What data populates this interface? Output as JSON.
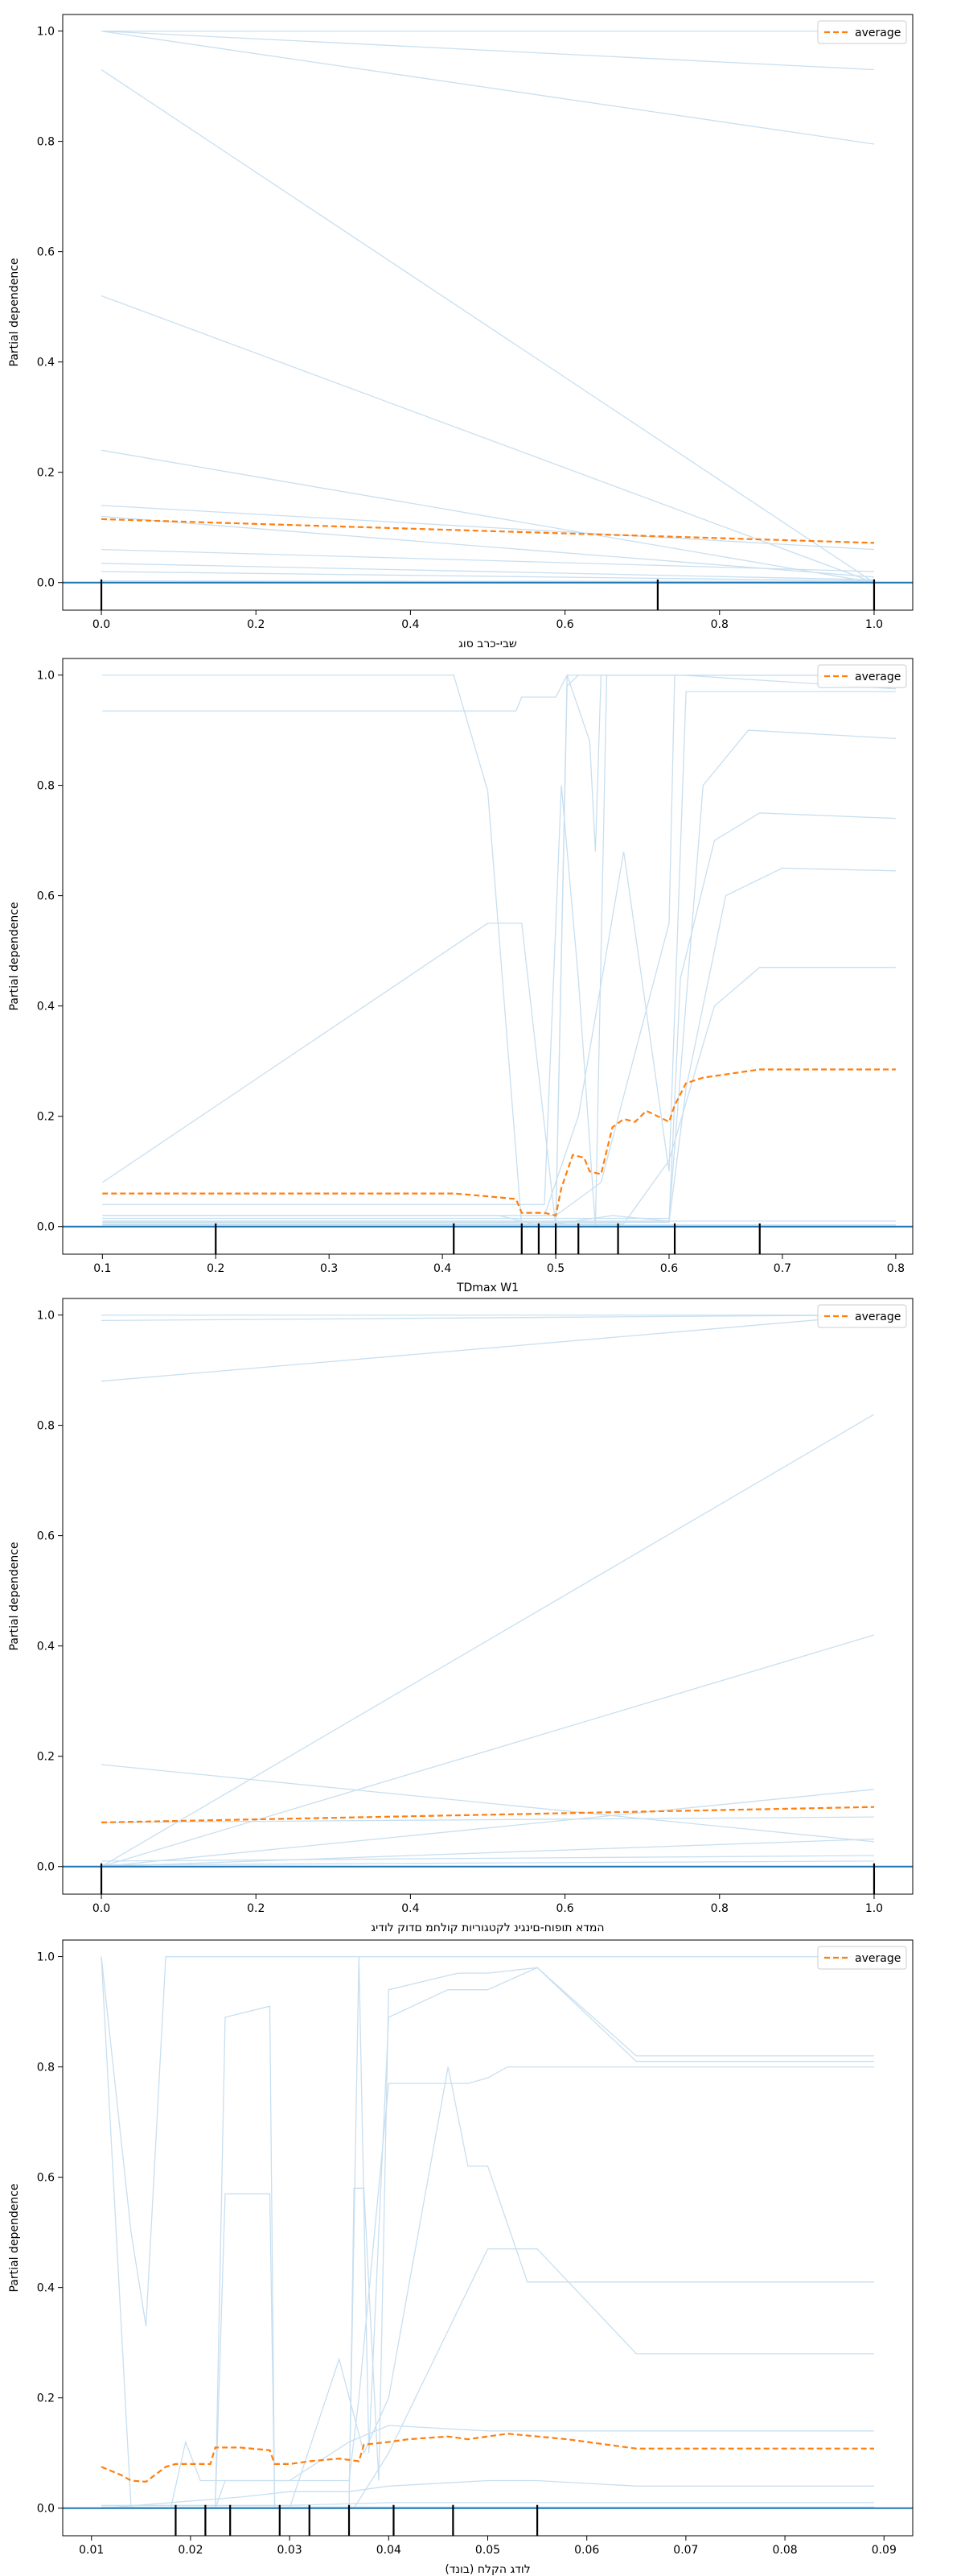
{
  "chart_data": [
    {
      "type": "line",
      "xlabel": "שבי-כרב סוג",
      "ylabel": "Partial dependence",
      "xlim": [
        -0.05,
        1.05
      ],
      "ylim": [
        -0.05,
        1.03
      ],
      "xticks": [
        0.0,
        0.2,
        0.4,
        0.6,
        0.8,
        1.0
      ],
      "xtick_labels": [
        "0.0",
        "0.2",
        "0.4",
        "0.6",
        "0.8",
        "1.0"
      ],
      "yticks": [
        0.0,
        0.2,
        0.4,
        0.6,
        0.8,
        1.0
      ],
      "ytick_labels": [
        "0.0",
        "0.2",
        "0.4",
        "0.6",
        "0.8",
        "1.0"
      ],
      "legend": {
        "label": "average",
        "position": "top-right"
      },
      "average": {
        "x": [
          0.0,
          1.0
        ],
        "y": [
          0.115,
          0.072
        ]
      },
      "ice": [
        {
          "x": [
            0.0,
            1.0
          ],
          "y": [
            1.0,
            1.0
          ]
        },
        {
          "x": [
            0.0,
            1.0
          ],
          "y": [
            1.0,
            0.93
          ]
        },
        {
          "x": [
            0.0,
            1.0
          ],
          "y": [
            1.0,
            0.795
          ]
        },
        {
          "x": [
            0.0,
            1.0
          ],
          "y": [
            0.93,
            0.0
          ]
        },
        {
          "x": [
            0.0,
            1.0
          ],
          "y": [
            0.52,
            0.0
          ]
        },
        {
          "x": [
            0.0,
            1.0
          ],
          "y": [
            0.24,
            0.0
          ]
        },
        {
          "x": [
            0.0,
            1.0
          ],
          "y": [
            0.14,
            0.06
          ]
        },
        {
          "x": [
            0.0,
            1.0
          ],
          "y": [
            0.12,
            0.01
          ]
        },
        {
          "x": [
            0.0,
            1.0
          ],
          "y": [
            0.06,
            0.02
          ]
        },
        {
          "x": [
            0.0,
            1.0
          ],
          "y": [
            0.035,
            0.005
          ]
        },
        {
          "x": [
            0.0,
            1.0
          ],
          "y": [
            0.02,
            0.003
          ]
        },
        {
          "x": [
            0.0,
            1.0
          ],
          "y": [
            0.003,
            0.002
          ]
        }
      ],
      "rug": [
        0.0,
        0.72,
        1.0
      ]
    },
    {
      "type": "line",
      "xlabel": "TDmax W1",
      "ylabel": "Partial dependence",
      "xlim": [
        0.065,
        0.815
      ],
      "ylim": [
        -0.05,
        1.03
      ],
      "xticks": [
        0.1,
        0.2,
        0.3,
        0.4,
        0.5,
        0.6,
        0.7,
        0.8
      ],
      "xtick_labels": [
        "0.1",
        "0.2",
        "0.3",
        "0.4",
        "0.5",
        "0.6",
        "0.7",
        "0.8"
      ],
      "yticks": [
        0.0,
        0.2,
        0.4,
        0.6,
        0.8,
        1.0
      ],
      "ytick_labels": [
        "0.0",
        "0.2",
        "0.4",
        "0.6",
        "0.8",
        "1.0"
      ],
      "legend": {
        "label": "average",
        "position": "top-right"
      },
      "average": {
        "x": [
          0.1,
          0.41,
          0.44,
          0.465,
          0.47,
          0.49,
          0.5,
          0.505,
          0.515,
          0.525,
          0.53,
          0.54,
          0.55,
          0.56,
          0.57,
          0.58,
          0.6,
          0.605,
          0.615,
          0.63,
          0.68,
          0.8
        ],
        "y": [
          0.06,
          0.06,
          0.055,
          0.05,
          0.025,
          0.025,
          0.02,
          0.07,
          0.13,
          0.125,
          0.1,
          0.095,
          0.18,
          0.195,
          0.19,
          0.21,
          0.19,
          0.22,
          0.26,
          0.27,
          0.285,
          0.285
        ]
      },
      "ice": [
        {
          "x": [
            0.1,
            0.41,
            0.44,
            0.47,
            0.5,
            0.51,
            0.53,
            0.535,
            0.54,
            0.8
          ],
          "y": [
            1.0,
            1.0,
            0.79,
            0.0,
            0.0,
            1.0,
            0.88,
            0.68,
            1.0,
            1.0
          ]
        },
        {
          "x": [
            0.1,
            0.41,
            0.44,
            0.465,
            0.47,
            0.5,
            0.51,
            0.53,
            0.54,
            0.8
          ],
          "y": [
            0.935,
            0.935,
            0.935,
            0.935,
            0.96,
            0.96,
            1.0,
            1.0,
            1.0,
            1.0
          ]
        },
        {
          "x": [
            0.1,
            0.44,
            0.47,
            0.5,
            0.51,
            0.52,
            0.53,
            0.545,
            0.8
          ],
          "y": [
            0.08,
            0.55,
            0.55,
            0.0,
            0.98,
            1.0,
            1.0,
            1.0,
            1.0
          ]
        },
        {
          "x": [
            0.1,
            0.49,
            0.505,
            0.52,
            0.535,
            0.545,
            0.56,
            0.6,
            0.61,
            0.8
          ],
          "y": [
            0.04,
            0.04,
            0.8,
            0.45,
            0.0,
            1.0,
            1.0,
            1.0,
            1.0,
            0.975
          ]
        },
        {
          "x": [
            0.1,
            0.49,
            0.52,
            0.56,
            0.6,
            0.615,
            0.8
          ],
          "y": [
            0.02,
            0.02,
            0.2,
            0.68,
            0.1,
            0.97,
            0.97
          ]
        },
        {
          "x": [
            0.1,
            0.5,
            0.54,
            0.6,
            0.605,
            0.64,
            0.8
          ],
          "y": [
            0.02,
            0.02,
            0.08,
            0.55,
            1.0,
            1.0,
            1.0
          ]
        },
        {
          "x": [
            0.1,
            0.6,
            0.63,
            0.67,
            0.8
          ],
          "y": [
            0.015,
            0.015,
            0.8,
            0.9,
            0.885
          ]
        },
        {
          "x": [
            0.1,
            0.6,
            0.61,
            0.64,
            0.68,
            0.8
          ],
          "y": [
            0.01,
            0.01,
            0.45,
            0.7,
            0.75,
            0.74
          ]
        },
        {
          "x": [
            0.1,
            0.6,
            0.615,
            0.65,
            0.7,
            0.8
          ],
          "y": [
            0.008,
            0.008,
            0.25,
            0.6,
            0.65,
            0.645
          ]
        },
        {
          "x": [
            0.1,
            0.56,
            0.6,
            0.64,
            0.68,
            0.8
          ],
          "y": [
            0.005,
            0.005,
            0.12,
            0.4,
            0.47,
            0.47
          ]
        },
        {
          "x": [
            0.1,
            0.45,
            0.48,
            0.5,
            0.55,
            0.6,
            0.8
          ],
          "y": [
            0.02,
            0.02,
            0.005,
            0.005,
            0.02,
            0.01,
            0.01
          ]
        },
        {
          "x": [
            0.1,
            0.8
          ],
          "y": [
            0.003,
            0.003
          ]
        }
      ],
      "rug": [
        0.2,
        0.41,
        0.47,
        0.485,
        0.5,
        0.52,
        0.555,
        0.605,
        0.68
      ]
    },
    {
      "type": "line",
      "xlabel": "המדא תופוח-םינגינ לקטגוריות קולחמ םדוק לודיג",
      "ylabel": "Partial dependence",
      "xlim": [
        -0.05,
        1.05
      ],
      "ylim": [
        -0.05,
        1.03
      ],
      "xticks": [
        0.0,
        0.2,
        0.4,
        0.6,
        0.8,
        1.0
      ],
      "xtick_labels": [
        "0.0",
        "0.2",
        "0.4",
        "0.6",
        "0.8",
        "1.0"
      ],
      "yticks": [
        0.0,
        0.2,
        0.4,
        0.6,
        0.8,
        1.0
      ],
      "ytick_labels": [
        "0.0",
        "0.2",
        "0.4",
        "0.6",
        "0.8",
        "1.0"
      ],
      "legend": {
        "label": "average",
        "position": "top-right"
      },
      "average": {
        "x": [
          0.0,
          1.0
        ],
        "y": [
          0.08,
          0.108
        ]
      },
      "ice": [
        {
          "x": [
            0.0,
            1.0
          ],
          "y": [
            1.0,
            1.0
          ]
        },
        {
          "x": [
            0.0,
            1.0
          ],
          "y": [
            0.99,
            1.0
          ]
        },
        {
          "x": [
            0.0,
            1.0
          ],
          "y": [
            0.88,
            1.0
          ]
        },
        {
          "x": [
            0.0,
            1.0
          ],
          "y": [
            0.0,
            0.82
          ]
        },
        {
          "x": [
            0.0,
            1.0
          ],
          "y": [
            0.0,
            0.42
          ]
        },
        {
          "x": [
            0.0,
            1.0
          ],
          "y": [
            0.185,
            0.045
          ]
        },
        {
          "x": [
            0.0,
            1.0
          ],
          "y": [
            0.0,
            0.14
          ]
        },
        {
          "x": [
            0.0,
            1.0
          ],
          "y": [
            0.08,
            0.09
          ]
        },
        {
          "x": [
            0.0,
            1.0
          ],
          "y": [
            0.0,
            0.05
          ]
        },
        {
          "x": [
            0.0,
            1.0
          ],
          "y": [
            0.01,
            0.02
          ]
        },
        {
          "x": [
            0.0,
            1.0
          ],
          "y": [
            0.003,
            0.01
          ]
        }
      ],
      "rug": [
        0.0,
        1.0
      ]
    },
    {
      "type": "line",
      "xlabel": "לודג הקלח (בונד)",
      "ylabel": "Partial dependence",
      "xlim": [
        0.0071,
        0.0929
      ],
      "ylim": [
        -0.05,
        1.03
      ],
      "xticks": [
        0.01,
        0.02,
        0.03,
        0.04,
        0.05,
        0.06,
        0.07,
        0.08,
        0.09
      ],
      "xtick_labels": [
        "0.01",
        "0.02",
        "0.03",
        "0.04",
        "0.05",
        "0.06",
        "0.07",
        "0.08",
        "0.09"
      ],
      "yticks": [
        0.0,
        0.2,
        0.4,
        0.6,
        0.8,
        1.0
      ],
      "ytick_labels": [
        "0.0",
        "0.2",
        "0.4",
        "0.6",
        "0.8",
        "1.0"
      ],
      "legend": {
        "label": "average",
        "position": "top-right"
      },
      "average": {
        "x": [
          0.011,
          0.013,
          0.014,
          0.0155,
          0.0175,
          0.0185,
          0.0205,
          0.022,
          0.0225,
          0.0235,
          0.025,
          0.028,
          0.0285,
          0.03,
          0.032,
          0.035,
          0.037,
          0.0375,
          0.04,
          0.042,
          0.046,
          0.048,
          0.05,
          0.052,
          0.055,
          0.058,
          0.065,
          0.089
        ],
        "y": [
          0.075,
          0.06,
          0.05,
          0.048,
          0.075,
          0.08,
          0.08,
          0.08,
          0.11,
          0.11,
          0.11,
          0.105,
          0.08,
          0.08,
          0.085,
          0.09,
          0.085,
          0.115,
          0.12,
          0.125,
          0.13,
          0.125,
          0.13,
          0.135,
          0.13,
          0.125,
          0.108,
          0.108
        ]
      },
      "ice": [
        {
          "x": [
            0.011,
            0.014,
            0.0155,
            0.0175,
            0.0185,
            0.089
          ],
          "y": [
            1.0,
            0.5,
            0.33,
            1.0,
            1.0,
            1.0
          ]
        },
        {
          "x": [
            0.011,
            0.0125,
            0.014,
            0.018,
            0.089
          ],
          "y": [
            1.0,
            0.5,
            0.0,
            0.0,
            0.0
          ]
        },
        {
          "x": [
            0.011,
            0.0225,
            0.0235,
            0.028,
            0.0285,
            0.036,
            0.0365,
            0.0375,
            0.039,
            0.04,
            0.047,
            0.05,
            0.055,
            0.065,
            0.089
          ],
          "y": [
            0.0,
            0.0,
            0.89,
            0.91,
            0.0,
            0.0,
            0.58,
            0.58,
            0.05,
            0.94,
            0.97,
            0.97,
            0.98,
            0.82,
            0.82
          ]
        },
        {
          "x": [
            0.011,
            0.0225,
            0.0235,
            0.028,
            0.0285,
            0.036,
            0.037,
            0.038,
            0.039,
            0.04,
            0.046,
            0.05,
            0.055,
            0.065,
            0.089
          ],
          "y": [
            0.0,
            0.0,
            0.57,
            0.57,
            0.0,
            0.0,
            1.0,
            0.1,
            0.5,
            0.89,
            0.94,
            0.94,
            0.98,
            0.81,
            0.81
          ]
        },
        {
          "x": [
            0.011,
            0.0225,
            0.0235,
            0.036,
            0.037,
            0.04,
            0.046,
            0.048,
            0.05,
            0.052,
            0.054,
            0.089
          ],
          "y": [
            0.0,
            0.0,
            0.05,
            0.05,
            0.2,
            0.77,
            0.77,
            0.77,
            0.78,
            0.8,
            0.8,
            0.8
          ]
        },
        {
          "x": [
            0.011,
            0.03,
            0.035,
            0.0375,
            0.04,
            0.046,
            0.048,
            0.05,
            0.054,
            0.065,
            0.089
          ],
          "y": [
            0.0,
            0.0,
            0.27,
            0.1,
            0.2,
            0.8,
            0.62,
            0.62,
            0.41,
            0.41,
            0.41
          ]
        },
        {
          "x": [
            0.011,
            0.0365,
            0.04,
            0.05,
            0.055,
            0.065,
            0.089
          ],
          "y": [
            0.0,
            0.0,
            0.1,
            0.47,
            0.47,
            0.28,
            0.28
          ]
        },
        {
          "x": [
            0.011,
            0.018,
            0.0195,
            0.021,
            0.03,
            0.036,
            0.04,
            0.05,
            0.055,
            0.065,
            0.089
          ],
          "y": [
            0.0,
            0.0,
            0.12,
            0.05,
            0.05,
            0.12,
            0.15,
            0.14,
            0.14,
            0.14,
            0.14
          ]
        },
        {
          "x": [
            0.011,
            0.025,
            0.03,
            0.036,
            0.04,
            0.05,
            0.055,
            0.065,
            0.089
          ],
          "y": [
            0.0,
            0.02,
            0.03,
            0.03,
            0.04,
            0.05,
            0.05,
            0.04,
            0.04
          ]
        },
        {
          "x": [
            0.011,
            0.03,
            0.04,
            0.05,
            0.065,
            0.089
          ],
          "y": [
            0.005,
            0.005,
            0.01,
            0.01,
            0.01,
            0.01
          ]
        },
        {
          "x": [
            0.011,
            0.089
          ],
          "y": [
            0.002,
            0.002
          ]
        }
      ],
      "rug": [
        0.0185,
        0.0215,
        0.024,
        0.029,
        0.032,
        0.036,
        0.0405,
        0.0465,
        0.055
      ]
    }
  ]
}
